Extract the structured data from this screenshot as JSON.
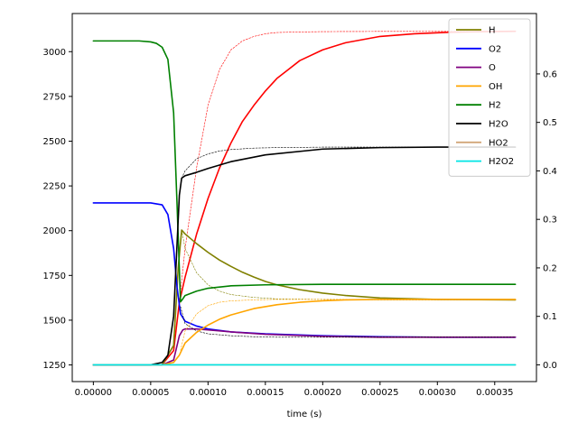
{
  "chart_data": {
    "type": "line",
    "title": "",
    "xlabel": "time (s)",
    "ylabel_left": "",
    "ylabel_right": "",
    "xlim": [
      -1.84e-05,
      0.0003864
    ],
    "ylim_left": [
      1157,
      3213
    ],
    "ylim_right": [
      -0.0345,
      0.7245
    ],
    "x_ticks": [
      0,
      5e-05,
      0.0001,
      0.00015,
      0.0002,
      0.00025,
      0.0003,
      0.00035
    ],
    "x_tick_labels": [
      "0.00000",
      "0.00005",
      "0.00010",
      "0.00015",
      "0.00020",
      "0.00025",
      "0.00030",
      "0.00035"
    ],
    "y_left_ticks": [
      1250,
      1500,
      1750,
      2000,
      2250,
      2500,
      2750,
      3000
    ],
    "y_left_tick_labels": [
      "1250",
      "1500",
      "1750",
      "2000",
      "2250",
      "2500",
      "2750",
      "3000"
    ],
    "y_right_ticks": [
      0.0,
      0.1,
      0.2,
      0.3,
      0.4,
      0.5,
      0.6
    ],
    "y_right_tick_labels": [
      "0.0",
      "0.1",
      "0.2",
      "0.3",
      "0.4",
      "0.5",
      "0.6"
    ],
    "legend_position": "top-right",
    "grid": false,
    "series": [
      {
        "key": "temp",
        "axis": "left",
        "color": "#ff0000",
        "style": "solid",
        "in_legend": false,
        "x": [
          0,
          6e-05,
          7e-05,
          7.5e-05,
          8e-05,
          9e-05,
          0.0001,
          0.00011,
          0.00012,
          0.00013,
          0.00014,
          0.00015,
          0.00016,
          0.00017,
          0.00018,
          0.0002,
          0.00022,
          0.00025,
          0.00028,
          0.00031,
          0.00034,
          0.000368
        ],
        "y": [
          1250,
          1252,
          1330,
          1600,
          1740,
          1980,
          2180,
          2350,
          2490,
          2610,
          2700,
          2780,
          2850,
          2900,
          2950,
          3010,
          3050,
          3085,
          3100,
          3108,
          3112,
          3114
        ]
      },
      {
        "key": "temp-eq",
        "axis": "left",
        "color": "#ff0000",
        "style": "dotted",
        "in_legend": false,
        "x": [
          7.5e-05,
          8e-05,
          9e-05,
          0.0001,
          0.00011,
          0.00012,
          0.00013,
          0.00014,
          0.00015,
          0.00016,
          0.00018,
          0.0002,
          0.00025,
          0.0003,
          0.000368
        ],
        "y": [
          1600,
          1900,
          2350,
          2700,
          2900,
          3010,
          3060,
          3085,
          3100,
          3107,
          3110,
          3112,
          3113,
          3113,
          3114
        ]
      },
      {
        "name": "H",
        "axis": "right",
        "color": "#808000",
        "style": "solid",
        "in_legend": true,
        "x": [
          0,
          6e-05,
          7e-05,
          7.4e-05,
          7.7e-05,
          8e-05,
          9e-05,
          0.0001,
          0.00011,
          0.00012,
          0.00013,
          0.00014,
          0.00015,
          0.00016,
          0.00018,
          0.0002,
          0.00022,
          0.00025,
          0.0003,
          0.000368
        ],
        "y": [
          0.0,
          0.0,
          0.04,
          0.2,
          0.278,
          0.27,
          0.25,
          0.232,
          0.216,
          0.203,
          0.191,
          0.181,
          0.172,
          0.165,
          0.155,
          0.148,
          0.143,
          0.138,
          0.135,
          0.134
        ]
      },
      {
        "name": "H-eq",
        "axis": "right",
        "color": "#808000",
        "style": "dotted",
        "in_legend": false,
        "x": [
          7.7e-05,
          8e-05,
          9e-05,
          0.0001,
          0.00011,
          0.00012,
          0.00014,
          0.00016,
          0.0002,
          0.00025,
          0.0003,
          0.000368
        ],
        "y": [
          0.278,
          0.24,
          0.19,
          0.165,
          0.152,
          0.145,
          0.139,
          0.136,
          0.135,
          0.134,
          0.134,
          0.134
        ]
      },
      {
        "name": "O2",
        "axis": "right",
        "color": "#0000ff",
        "style": "solid",
        "in_legend": true,
        "x": [
          0,
          5e-05,
          6e-05,
          6.5e-05,
          7e-05,
          7.3e-05,
          7.6e-05,
          8e-05,
          9e-05,
          0.0001,
          0.00012,
          0.00015,
          0.0002,
          0.00025,
          0.0003,
          0.000368
        ],
        "y": [
          0.334,
          0.334,
          0.33,
          0.31,
          0.24,
          0.16,
          0.105,
          0.09,
          0.08,
          0.074,
          0.068,
          0.064,
          0.06,
          0.058,
          0.057,
          0.057
        ]
      },
      {
        "name": "O",
        "axis": "right",
        "color": "#800080",
        "style": "solid",
        "in_legend": true,
        "x": [
          0,
          6e-05,
          7e-05,
          7.5e-05,
          7.8e-05,
          8e-05,
          9e-05,
          0.0001,
          0.00012,
          0.00015,
          0.0002,
          0.00025,
          0.0003,
          0.000368
        ],
        "y": [
          0.0,
          0.0,
          0.01,
          0.06,
          0.072,
          0.074,
          0.074,
          0.072,
          0.068,
          0.063,
          0.059,
          0.057,
          0.057,
          0.057
        ]
      },
      {
        "name": "O-eq",
        "axis": "right",
        "color": "#000000",
        "style": "dotted",
        "in_legend": false,
        "x": [
          7.6e-05,
          8e-05,
          9e-05,
          0.0001,
          0.00012,
          0.00014,
          0.00016,
          0.0002,
          0.00025,
          0.0003,
          0.000368
        ],
        "y": [
          0.12,
          0.085,
          0.07,
          0.064,
          0.06,
          0.058,
          0.057,
          0.057,
          0.057,
          0.057,
          0.057
        ]
      },
      {
        "name": "OH",
        "axis": "right",
        "color": "#ffa500",
        "style": "solid",
        "in_legend": true,
        "x": [
          0,
          6e-05,
          7e-05,
          7.5e-05,
          8e-05,
          9e-05,
          0.0001,
          0.00011,
          0.00012,
          0.00014,
          0.00016,
          0.00018,
          0.0002,
          0.00022,
          0.00025,
          0.0003,
          0.000368
        ],
        "y": [
          0.0,
          0.0,
          0.005,
          0.02,
          0.045,
          0.067,
          0.082,
          0.094,
          0.103,
          0.116,
          0.124,
          0.129,
          0.132,
          0.134,
          0.135,
          0.135,
          0.135
        ]
      },
      {
        "name": "OH-eq",
        "axis": "right",
        "color": "#ffa500",
        "style": "dotted",
        "in_legend": false,
        "x": [
          7.6e-05,
          8e-05,
          9e-05,
          0.0001,
          0.00011,
          0.00012,
          0.00014,
          0.00016,
          0.0002,
          0.00025,
          0.0003,
          0.000368
        ],
        "y": [
          0.03,
          0.07,
          0.105,
          0.122,
          0.129,
          0.132,
          0.134,
          0.135,
          0.135,
          0.135,
          0.135,
          0.135
        ]
      },
      {
        "name": "H2",
        "axis": "right",
        "color": "#008000",
        "style": "solid",
        "in_legend": true,
        "x": [
          0,
          4e-05,
          5e-05,
          5.5e-05,
          6e-05,
          6.5e-05,
          7e-05,
          7.3e-05,
          7.6e-05,
          7.8e-05,
          8e-05,
          9e-05,
          0.0001,
          0.00012,
          0.00015,
          0.0002,
          0.00025,
          0.0003,
          0.000368
        ],
        "y": [
          0.668,
          0.668,
          0.666,
          0.663,
          0.655,
          0.63,
          0.52,
          0.33,
          0.13,
          0.136,
          0.143,
          0.152,
          0.158,
          0.163,
          0.165,
          0.166,
          0.166,
          0.166,
          0.166
        ]
      },
      {
        "name": "H2O",
        "axis": "right",
        "color": "#000000",
        "style": "solid",
        "in_legend": true,
        "x": [
          0,
          5e-05,
          6e-05,
          6.5e-05,
          7e-05,
          7.3e-05,
          7.5e-05,
          7.7e-05,
          8e-05,
          9e-05,
          0.0001,
          0.00012,
          0.00015,
          0.0002,
          0.00025,
          0.0003,
          0.000368
        ],
        "y": [
          0.0,
          0.0,
          0.005,
          0.02,
          0.1,
          0.25,
          0.35,
          0.385,
          0.39,
          0.397,
          0.405,
          0.419,
          0.433,
          0.445,
          0.448,
          0.449,
          0.449
        ]
      },
      {
        "name": "H2O-eq",
        "axis": "right",
        "color": "#000000",
        "style": "dotted",
        "in_legend": false,
        "x": [
          7.7e-05,
          8e-05,
          9e-05,
          0.0001,
          0.00011,
          0.00012,
          0.00014,
          0.00016,
          0.0002,
          0.00025,
          0.0003,
          0.000368
        ],
        "y": [
          0.385,
          0.4,
          0.425,
          0.435,
          0.441,
          0.444,
          0.447,
          0.448,
          0.449,
          0.449,
          0.449,
          0.449
        ]
      },
      {
        "name": "HO2",
        "axis": "right",
        "color": "#d2a679",
        "style": "solid",
        "in_legend": true,
        "x": [
          0,
          0.000368
        ],
        "y": [
          0.0,
          0.0
        ]
      },
      {
        "name": "H2O2",
        "axis": "right",
        "color": "#00e5e5",
        "style": "solid",
        "in_legend": true,
        "x": [
          0,
          0.000368
        ],
        "y": [
          0.0,
          0.0
        ]
      }
    ]
  }
}
